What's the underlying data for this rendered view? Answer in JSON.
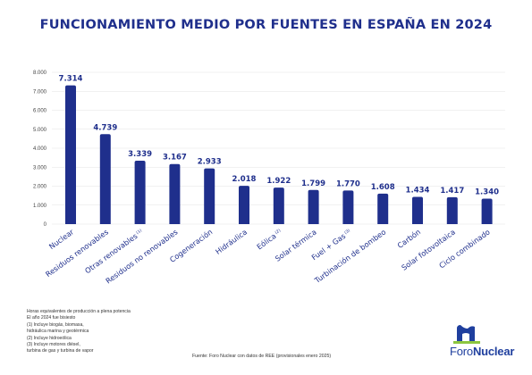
{
  "chart_data": {
    "type": "bar",
    "title": "FUNCIONAMIENTO MEDIO POR FUENTES EN ESPAÑA EN 2024",
    "categories": [
      "Nuclear",
      "Residuos renovables",
      "Otras renovables",
      "Residuos no renovables",
      "Cogeneración",
      "Hidráulica",
      "Eólica",
      "Solar térmica",
      "Fuel + Gas",
      "Turbinación de bombeo",
      "Carbón",
      "Solar fotovoltaica",
      "Ciclo combinado"
    ],
    "category_superscripts": [
      "",
      "",
      "(1)",
      "",
      "",
      "",
      "(2)",
      "",
      "(3)",
      "",
      "",
      "",
      ""
    ],
    "values": [
      7314,
      4739,
      3339,
      3167,
      2933,
      2018,
      1922,
      1799,
      1770,
      1608,
      1434,
      1417,
      1340
    ],
    "value_labels": [
      "7.314",
      "4.739",
      "3.339",
      "3.167",
      "2.933",
      "2.018",
      "1.922",
      "1.799",
      "1.770",
      "1.608",
      "1.434",
      "1.417",
      "1.340"
    ],
    "ylim": [
      0,
      8000
    ],
    "yticks": [
      0,
      1000,
      2000,
      3000,
      4000,
      5000,
      6000,
      7000,
      8000
    ],
    "ytick_labels": [
      "0",
      "1.000",
      "2.000",
      "3.000",
      "4.000",
      "5.000",
      "6.000",
      "7.000",
      "8.000"
    ],
    "grid": true,
    "bar_color": "#1f2f8c"
  },
  "notes": [
    "Horas equivalentes de producción a plena potencia",
    "El año 2024 fue bisiesto",
    "(1) Incluye biogás, biomasa,",
    "hidráulica marina y geotérmica",
    "(2) Incluye hidroeólica",
    "(3) Incluye motores diésel,",
    "turbina de gas y turbina de vapor"
  ],
  "source": "Fuente: Foro Nuclear con datos de REE (provisionales enero 2025)",
  "logo": {
    "part1": "Foro",
    "part2": "Nuclear"
  },
  "colors": {
    "title": "#1f2f8c",
    "bar": "#1f2f8c",
    "logo_blue": "#1f3f9e",
    "logo_green": "#8cc63f"
  }
}
